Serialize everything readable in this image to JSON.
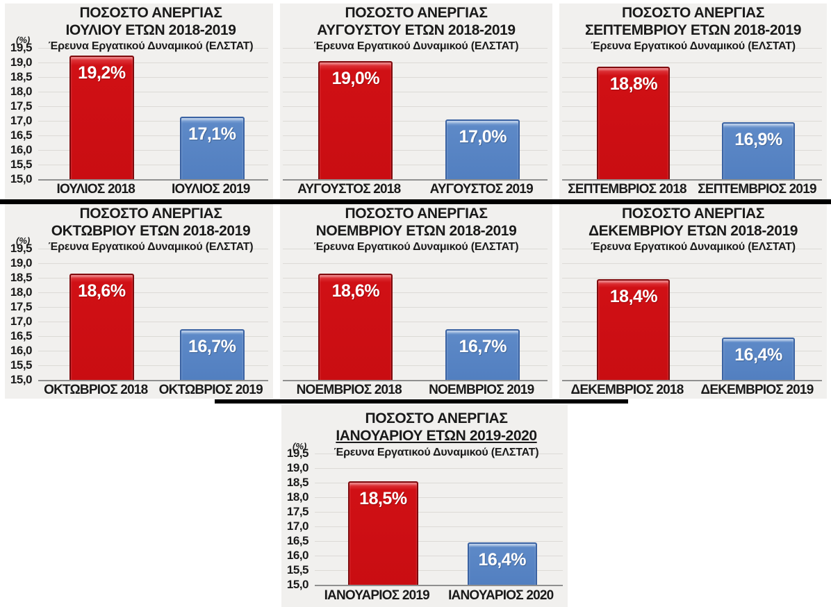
{
  "page": {
    "background": "#ffffff"
  },
  "colors": {
    "tile_background": "#f1f0ee",
    "gridline": "#dcdad6",
    "axis_line": "#8f8f8f",
    "bar_2018_fill": "#cc0e12",
    "bar_2018_border": "#7e0a0d",
    "bar_2019_fill": "#5d89c7",
    "bar_2019_border": "#3a62a2",
    "bar_label_text": "#ffffff",
    "title_text": "#1a1a1a",
    "divider": "#000000"
  },
  "axis": {
    "unit_label": "(%)",
    "ticks": [
      "19,5",
      "19,0",
      "18,5",
      "18,0",
      "17,5",
      "17,0",
      "16,5",
      "16,0",
      "15,5",
      "15,0"
    ],
    "min": 15.0,
    "max": 19.5
  },
  "chart_data": [
    {
      "type": "bar",
      "title_line1": "ΠΟΣΟΣΤΟ ΑΝΕΡΓΙΑΣ",
      "title_line2": "ΙΟΥΛΙΟΥ ΕΤΩΝ 2018-2019",
      "subtitle": "Έρευνα Εργατικού Δυναμικού (ΕΛΣΤΑΤ)",
      "categories": [
        "ΙΟΥΛΙΟΣ 2018",
        "ΙΟΥΛΙΟΣ 2019"
      ],
      "values": [
        19.2,
        17.1
      ],
      "labels": [
        "19,2%",
        "17,1%"
      ],
      "ylim": [
        15.0,
        19.5
      ],
      "show_y_axis": true,
      "title2_underlined": false
    },
    {
      "type": "bar",
      "title_line1": "ΠΟΣΟΣΤΟ ΑΝΕΡΓΙΑΣ",
      "title_line2": "ΑΥΓΟΥΣΤΟΥ ΕΤΩΝ 2018-2019",
      "subtitle": "Έρευνα Εργατικού Δυναμικού (ΕΛΣΤΑΤ)",
      "categories": [
        "ΑΥΓΟΥΣΤΟΣ 2018",
        "ΑΥΓΟΥΣΤΟΣ 2019"
      ],
      "values": [
        19.0,
        17.0
      ],
      "labels": [
        "19,0%",
        "17,0%"
      ],
      "ylim": [
        15.0,
        19.5
      ],
      "show_y_axis": false,
      "title2_underlined": false
    },
    {
      "type": "bar",
      "title_line1": "ΠΟΣΟΣΤΟ ΑΝΕΡΓΙΑΣ",
      "title_line2": "ΣΕΠΤΕΜΒΡΙΟΥ ΕΤΩΝ 2018-2019",
      "subtitle": "Έρευνα Εργατικού Δυναμικού (ΕΛΣΤΑΤ)",
      "categories": [
        "ΣΕΠΤΕΜΒΡΙΟΣ 2018",
        "ΣΕΠΤΕΜΒΡΙΟΣ 2019"
      ],
      "values": [
        18.8,
        16.9
      ],
      "labels": [
        "18,8%",
        "16,9%"
      ],
      "ylim": [
        15.0,
        19.5
      ],
      "show_y_axis": false,
      "title2_underlined": false
    },
    {
      "type": "bar",
      "title_line1": "ΠΟΣΟΣΤΟ ΑΝΕΡΓΙΑΣ",
      "title_line2": "ΟΚΤΩΒΡΙΟΥ ΕΤΩΝ 2018-2019",
      "subtitle": "Έρευνα Εργατικού Δυναμικού (ΕΛΣΤΑΤ)",
      "categories": [
        "ΟΚΤΩΒΡΙΟΣ 2018",
        "ΟΚΤΩΒΡΙΟΣ 2019"
      ],
      "values": [
        18.6,
        16.7
      ],
      "labels": [
        "18,6%",
        "16,7%"
      ],
      "ylim": [
        15.0,
        19.5
      ],
      "show_y_axis": true,
      "title2_underlined": false
    },
    {
      "type": "bar",
      "title_line1": "ΠΟΣΟΣΤΟ ΑΝΕΡΓΙΑΣ",
      "title_line2": "ΝΟΕΜΒΡΙΟΥ ΕΤΩΝ 2018-2019",
      "subtitle": "Έρευνα Εργατικού Δυναμικού (ΕΛΣΤΑΤ)",
      "categories": [
        "ΝΟΕΜΒΡΙΟΣ 2018",
        "ΝΟΕΜΒΡΙΟΣ 2019"
      ],
      "values": [
        18.6,
        16.7
      ],
      "labels": [
        "18,6%",
        "16,7%"
      ],
      "ylim": [
        15.0,
        19.5
      ],
      "show_y_axis": false,
      "title2_underlined": false
    },
    {
      "type": "bar",
      "title_line1": "ΠΟΣΟΣΤΟ ΑΝΕΡΓΙΑΣ",
      "title_line2": "ΔΕΚΕΜΒΡΙΟΥ ΕΤΩΝ 2018-2019",
      "subtitle": "Έρευνα Εργατικού Δυναμικού (ΕΛΣΤΑΤ)",
      "categories": [
        "ΔΕΚΕΜΒΡΙΟΣ 2018",
        "ΔΕΚΕΜΒΡΙΟΣ 2019"
      ],
      "values": [
        18.4,
        16.4
      ],
      "labels": [
        "18,4%",
        "16,4%"
      ],
      "ylim": [
        15.0,
        19.5
      ],
      "show_y_axis": false,
      "title2_underlined": false
    },
    {
      "type": "bar",
      "title_line1": "ΠΟΣΟΣΤΟ ΑΝΕΡΓΙΑΣ",
      "title_line2": "ΙΑΝΟΥΑΡΙΟΥ ΕΤΩΝ 2019-2020",
      "subtitle": "Έρευνα Εργατικού Δυναμικού (ΕΛΣΤΑΤ)",
      "categories": [
        "ΙΑΝΟΥΑΡΙΟΣ 2019",
        "ΙΑΝΟΥΑΡΙΟΣ 2020"
      ],
      "values": [
        18.5,
        16.4
      ],
      "labels": [
        "18,5%",
        "16,4%"
      ],
      "ylim": [
        15.0,
        19.5
      ],
      "show_y_axis": true,
      "title2_underlined": true
    }
  ]
}
